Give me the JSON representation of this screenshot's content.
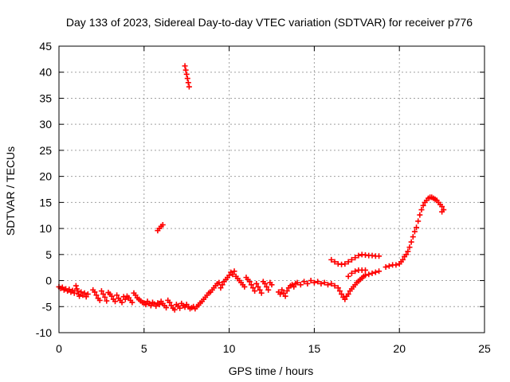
{
  "chart_data": {
    "type": "scatter",
    "title": "Day 133 of 2023, Sidereal Day-to-day VTEC variation (SDTVAR) for receiver p776",
    "xlabel": "GPS time / hours",
    "ylabel": "SDTVAR / TECUs",
    "xlim": [
      0,
      25
    ],
    "ylim": [
      -10,
      45
    ],
    "xticks": [
      0,
      5,
      10,
      15,
      20,
      25
    ],
    "yticks": [
      -10,
      -5,
      0,
      5,
      10,
      15,
      20,
      25,
      30,
      35,
      40,
      45
    ],
    "grid": true,
    "marker": "+",
    "marker_color": "#ff0000",
    "series": [
      {
        "name": "SDTVAR",
        "points": [
          [
            0.0,
            -1.2
          ],
          [
            0.1,
            -1.5
          ],
          [
            0.2,
            -1.3
          ],
          [
            0.3,
            -1.8
          ],
          [
            0.4,
            -1.6
          ],
          [
            0.5,
            -2.0
          ],
          [
            0.6,
            -1.7
          ],
          [
            0.7,
            -2.2
          ],
          [
            0.8,
            -1.9
          ],
          [
            0.9,
            -2.4
          ],
          [
            1.0,
            -1.0
          ],
          [
            1.05,
            -1.6
          ],
          [
            1.1,
            -2.0
          ],
          [
            1.15,
            -2.6
          ],
          [
            1.2,
            -3.0
          ],
          [
            1.3,
            -2.2
          ],
          [
            1.4,
            -2.8
          ],
          [
            1.5,
            -2.4
          ],
          [
            1.6,
            -3.1
          ],
          [
            1.7,
            -2.6
          ],
          [
            2.0,
            -1.8
          ],
          [
            2.1,
            -2.2
          ],
          [
            2.2,
            -2.8
          ],
          [
            2.3,
            -3.4
          ],
          [
            2.4,
            -3.8
          ],
          [
            2.5,
            -2.0
          ],
          [
            2.6,
            -2.6
          ],
          [
            2.7,
            -3.2
          ],
          [
            2.8,
            -3.9
          ],
          [
            2.9,
            -2.3
          ],
          [
            3.0,
            -2.6
          ],
          [
            3.1,
            -3.0
          ],
          [
            3.2,
            -3.6
          ],
          [
            3.3,
            -4.0
          ],
          [
            3.4,
            -2.8
          ],
          [
            3.5,
            -3.4
          ],
          [
            3.6,
            -3.8
          ],
          [
            3.7,
            -4.2
          ],
          [
            3.8,
            -3.1
          ],
          [
            3.9,
            -3.6
          ],
          [
            4.0,
            -3.0
          ],
          [
            4.1,
            -3.3
          ],
          [
            4.2,
            -3.8
          ],
          [
            4.3,
            -4.2
          ],
          [
            4.4,
            -2.4
          ],
          [
            4.5,
            -2.8
          ],
          [
            4.6,
            -3.3
          ],
          [
            4.7,
            -3.6
          ],
          [
            4.8,
            -3.9
          ],
          [
            4.9,
            -4.2
          ],
          [
            5.0,
            -4.3
          ],
          [
            5.1,
            -4.6
          ],
          [
            5.2,
            -4.0
          ],
          [
            5.3,
            -4.4
          ],
          [
            5.4,
            -4.8
          ],
          [
            5.5,
            -4.2
          ],
          [
            5.6,
            -4.5
          ],
          [
            5.7,
            -4.9
          ],
          [
            5.8,
            -4.3
          ],
          [
            5.9,
            -4.6
          ],
          [
            6.0,
            -4.0
          ],
          [
            6.1,
            -4.4
          ],
          [
            6.2,
            -4.8
          ],
          [
            6.3,
            -5.2
          ],
          [
            6.4,
            -3.8
          ],
          [
            6.5,
            -4.2
          ],
          [
            6.6,
            -4.8
          ],
          [
            6.7,
            -5.3
          ],
          [
            6.8,
            -5.6
          ],
          [
            6.9,
            -4.6
          ],
          [
            7.0,
            -4.9
          ],
          [
            7.1,
            -5.3
          ],
          [
            7.2,
            -4.4
          ],
          [
            7.3,
            -4.8
          ],
          [
            7.4,
            -5.1
          ],
          [
            7.5,
            -4.6
          ],
          [
            7.6,
            -5.0
          ],
          [
            7.7,
            -5.4
          ],
          [
            7.8,
            -5.2
          ],
          [
            7.9,
            -5.0
          ],
          [
            8.0,
            -5.4
          ],
          [
            8.1,
            -5.0
          ],
          [
            8.2,
            -4.7
          ],
          [
            8.3,
            -4.3
          ],
          [
            8.4,
            -4.0
          ],
          [
            8.5,
            -3.6
          ],
          [
            8.6,
            -3.2
          ],
          [
            8.7,
            -2.8
          ],
          [
            8.8,
            -2.4
          ],
          [
            8.9,
            -2.2
          ],
          [
            9.0,
            -1.8
          ],
          [
            9.1,
            -1.4
          ],
          [
            9.2,
            -1.0
          ],
          [
            9.3,
            -0.6
          ],
          [
            9.4,
            -0.4
          ],
          [
            9.5,
            -1.4
          ],
          [
            9.6,
            -0.8
          ],
          [
            9.7,
            -0.2
          ],
          [
            9.8,
            0.2
          ],
          [
            9.9,
            0.6
          ],
          [
            10.0,
            1.0
          ],
          [
            10.1,
            1.6
          ],
          [
            10.2,
            1.2
          ],
          [
            10.3,
            1.8
          ],
          [
            10.4,
            0.8
          ],
          [
            10.5,
            0.4
          ],
          [
            10.6,
            0.0
          ],
          [
            10.7,
            -0.4
          ],
          [
            10.8,
            -0.8
          ],
          [
            10.9,
            -1.2
          ],
          [
            11.0,
            0.6
          ],
          [
            11.1,
            0.2
          ],
          [
            11.2,
            -0.2
          ],
          [
            11.3,
            -0.8
          ],
          [
            11.4,
            -1.4
          ],
          [
            11.5,
            -2.0
          ],
          [
            11.6,
            -0.6
          ],
          [
            11.7,
            -1.2
          ],
          [
            11.8,
            -1.8
          ],
          [
            11.9,
            -2.4
          ],
          [
            12.0,
            -0.2
          ],
          [
            12.1,
            -0.6
          ],
          [
            12.2,
            -1.2
          ],
          [
            12.3,
            -1.8
          ],
          [
            12.4,
            -0.4
          ],
          [
            12.5,
            -0.8
          ],
          [
            12.9,
            -2.2
          ],
          [
            13.0,
            -2.6
          ],
          [
            13.1,
            -1.8
          ],
          [
            13.2,
            -2.4
          ],
          [
            13.3,
            -3.0
          ],
          [
            13.4,
            -2.0
          ],
          [
            13.5,
            -1.4
          ],
          [
            13.6,
            -1.0
          ],
          [
            13.7,
            -0.8
          ],
          [
            13.8,
            -1.2
          ],
          [
            13.9,
            -0.6
          ],
          [
            14.0,
            -0.4
          ],
          [
            14.2,
            -0.8
          ],
          [
            14.4,
            -0.2
          ],
          [
            14.6,
            -0.6
          ],
          [
            14.8,
            0.0
          ],
          [
            15.0,
            -0.4
          ],
          [
            15.2,
            -0.2
          ],
          [
            15.4,
            -0.6
          ],
          [
            15.6,
            -0.4
          ],
          [
            15.8,
            -0.8
          ],
          [
            16.0,
            -0.6
          ],
          [
            16.2,
            -1.0
          ],
          [
            16.4,
            -1.4
          ],
          [
            16.5,
            -2.0
          ],
          [
            16.6,
            -2.6
          ],
          [
            16.7,
            -3.2
          ],
          [
            16.8,
            -3.6
          ],
          [
            16.9,
            -3.0
          ],
          [
            17.0,
            -2.6
          ],
          [
            17.1,
            -2.0
          ],
          [
            17.2,
            -1.6
          ],
          [
            17.3,
            -1.2
          ],
          [
            17.4,
            -0.8
          ],
          [
            17.5,
            -0.4
          ],
          [
            17.6,
            -0.1
          ],
          [
            17.7,
            0.2
          ],
          [
            17.8,
            0.5
          ],
          [
            17.9,
            0.8
          ],
          [
            18.0,
            1.0
          ],
          [
            18.2,
            1.2
          ],
          [
            18.4,
            1.4
          ],
          [
            18.6,
            1.6
          ],
          [
            18.8,
            1.8
          ],
          [
            17.0,
            0.8
          ],
          [
            17.2,
            1.4
          ],
          [
            17.4,
            1.8
          ],
          [
            17.6,
            2.0
          ],
          [
            17.8,
            2.0
          ],
          [
            18.0,
            2.0
          ],
          [
            16.0,
            4.0
          ],
          [
            16.2,
            3.6
          ],
          [
            16.4,
            3.2
          ],
          [
            16.6,
            3.1
          ],
          [
            16.8,
            3.2
          ],
          [
            17.0,
            3.6
          ],
          [
            17.2,
            4.0
          ],
          [
            17.4,
            4.4
          ],
          [
            17.6,
            4.8
          ],
          [
            17.8,
            5.0
          ],
          [
            18.0,
            4.9
          ],
          [
            18.2,
            4.8
          ],
          [
            18.4,
            4.8
          ],
          [
            18.6,
            4.7
          ],
          [
            18.8,
            4.7
          ],
          [
            19.2,
            2.6
          ],
          [
            19.4,
            2.8
          ],
          [
            19.6,
            3.0
          ],
          [
            19.8,
            3.0
          ],
          [
            20.0,
            3.2
          ],
          [
            20.1,
            3.6
          ],
          [
            20.2,
            4.0
          ],
          [
            20.3,
            4.6
          ],
          [
            20.4,
            5.0
          ],
          [
            20.5,
            5.6
          ],
          [
            20.6,
            6.4
          ],
          [
            20.7,
            7.4
          ],
          [
            20.8,
            8.4
          ],
          [
            20.9,
            9.4
          ],
          [
            21.0,
            10.2
          ],
          [
            21.1,
            11.4
          ],
          [
            21.2,
            12.6
          ],
          [
            21.3,
            13.6
          ],
          [
            21.4,
            14.4
          ],
          [
            21.5,
            15.0
          ],
          [
            21.6,
            15.4
          ],
          [
            21.7,
            15.8
          ],
          [
            21.8,
            16.0
          ],
          [
            21.9,
            16.0
          ],
          [
            22.0,
            15.8
          ],
          [
            22.1,
            15.6
          ],
          [
            22.2,
            15.4
          ],
          [
            22.3,
            15.0
          ],
          [
            22.4,
            14.6
          ],
          [
            22.5,
            14.2
          ],
          [
            22.6,
            13.6
          ],
          [
            22.5,
            13.2
          ],
          [
            5.8,
            9.6
          ],
          [
            5.9,
            10.0
          ],
          [
            6.0,
            10.4
          ],
          [
            6.1,
            10.7
          ],
          [
            7.4,
            41.2
          ],
          [
            7.45,
            40.4
          ],
          [
            7.5,
            39.6
          ],
          [
            7.55,
            38.8
          ],
          [
            7.6,
            38.0
          ],
          [
            7.65,
            37.2
          ]
        ]
      }
    ]
  }
}
